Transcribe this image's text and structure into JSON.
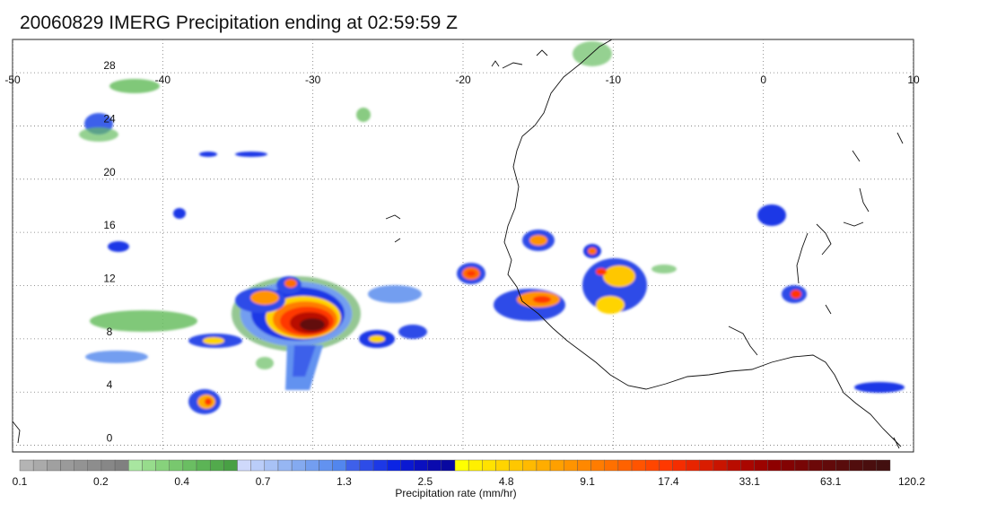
{
  "title": "20060829 IMERG Precipitation ending at 02:59:59 Z",
  "map": {
    "lon_range": [
      -50,
      10
    ],
    "lat_range": [
      -0.5,
      30.5
    ],
    "lon_ticks": [
      -50,
      -40,
      -30,
      -20,
      -10,
      0,
      10
    ],
    "lon_tick_labels": [
      "-50",
      "-40",
      "-30",
      "-20",
      "-10",
      "0",
      "10"
    ],
    "lat_ticks": [
      0,
      4,
      8,
      12,
      16,
      20,
      24,
      28
    ],
    "lat_tick_labels": [
      "0",
      "4",
      "8",
      "12",
      "16",
      "20",
      "24",
      "28"
    ],
    "grid": "dotted"
  },
  "colorbar": {
    "label": "Precipitation rate (mm/hr)",
    "tick_labels": [
      "0.1",
      "0.2",
      "0.4",
      "0.7",
      "1.3",
      "2.5",
      "4.8",
      "9.1",
      "17.4",
      "33.1",
      "63.1",
      "120.2"
    ],
    "colors": [
      "#b4b4b4",
      "#aaaaaa",
      "#a0a0a0",
      "#9a9a9a",
      "#939393",
      "#8d8d8d",
      "#878787",
      "#808080",
      "#a8e6a0",
      "#97dc8c",
      "#87d27c",
      "#78c86e",
      "#6abe62",
      "#5cb456",
      "#52aa4c",
      "#48a044",
      "#cfd9fb",
      "#bacdf9",
      "#a8c2f6",
      "#96b6f3",
      "#84aaf0",
      "#739ef0",
      "#6292f0",
      "#5286ee",
      "#3e60ea",
      "#2d4ce8",
      "#1c38e6",
      "#0b24e4",
      "#0a18d2",
      "#0a10c0",
      "#0a0aae",
      "#0808a0",
      "#ffff00",
      "#fff000",
      "#ffe200",
      "#ffd400",
      "#ffc700",
      "#ffba00",
      "#ffad00",
      "#ffa000",
      "#ff9400",
      "#ff8800",
      "#ff7c00",
      "#ff7000",
      "#ff6200",
      "#ff5400",
      "#ff4600",
      "#ff3800",
      "#f52d00",
      "#e82400",
      "#d91c00",
      "#c91400",
      "#b90c00",
      "#aa0600",
      "#9c0300",
      "#8e0000",
      "#830303",
      "#780606",
      "#6c0808",
      "#620a0a",
      "#590c0c",
      "#510d0d",
      "#4a0e0e",
      "#420f0f"
    ]
  }
}
